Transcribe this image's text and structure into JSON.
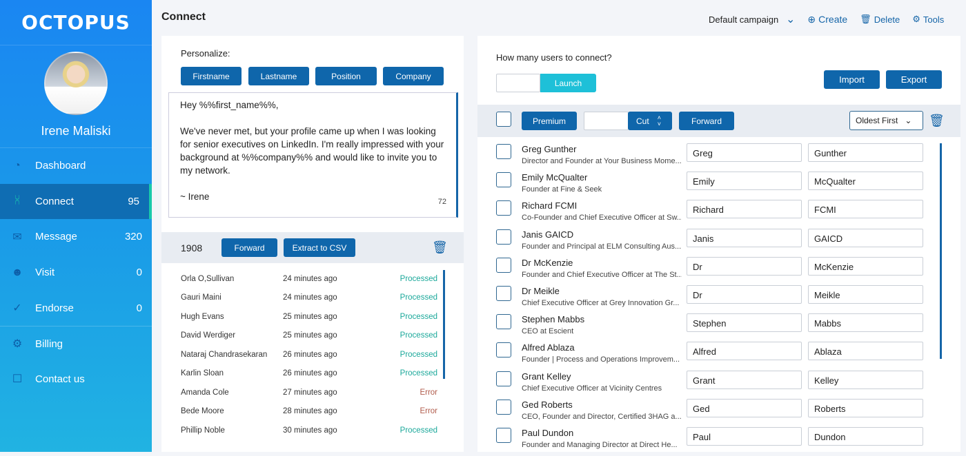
{
  "sidebar": {
    "logo": "OCTOPUS",
    "user": "Irene Maliski",
    "items": [
      {
        "label": "Dashboard",
        "count": "",
        "icon": "pie-chart-icon"
      },
      {
        "label": "Connect",
        "count": "95",
        "icon": "share-icon"
      },
      {
        "label": "Message",
        "count": "320",
        "icon": "mail-icon"
      },
      {
        "label": "Visit",
        "count": "0",
        "icon": "users-icon"
      },
      {
        "label": "Endorse",
        "count": "0",
        "icon": "user-check-icon"
      },
      {
        "label": "Billing",
        "count": "",
        "icon": "gear-icon"
      },
      {
        "label": "Contact us",
        "count": "",
        "icon": "chat-icon"
      }
    ]
  },
  "header": {
    "title": "Connect",
    "campaign": "Default campaign",
    "create": "Create",
    "delete": "Delete",
    "tools": "Tools"
  },
  "personalize": {
    "label": "Personalize:",
    "tokens": [
      "Firstname",
      "Lastname",
      "Position",
      "Company"
    ],
    "message": [
      "Hey %%first_name%%,",
      "We've never met, but your profile came up when I was looking for senior executives on LinkedIn. I'm really impressed with your background at %%company%% and would like to invite you to my network.",
      "~ Irene"
    ],
    "char_count": "72"
  },
  "history": {
    "count": "1908",
    "forward": "Forward",
    "extract": "Extract to CSV",
    "rows": [
      {
        "name": "Orla O,Sullivan",
        "time": "24 minutes ago",
        "status": "Processed"
      },
      {
        "name": "Gauri Maini",
        "time": "24 minutes ago",
        "status": "Processed"
      },
      {
        "name": "Hugh Evans",
        "time": "25 minutes ago",
        "status": "Processed"
      },
      {
        "name": "David Werdiger",
        "time": "25 minutes ago",
        "status": "Processed"
      },
      {
        "name": "Nataraj Chandrasekaran",
        "time": "26 minutes ago",
        "status": "Processed"
      },
      {
        "name": "Karlin Sloan",
        "time": "26 minutes ago",
        "status": "Processed"
      },
      {
        "name": "Amanda Cole",
        "time": "27 minutes ago",
        "status": "Error"
      },
      {
        "name": "Bede Moore",
        "time": "28 minutes ago",
        "status": "Error"
      },
      {
        "name": "Phillip Noble",
        "time": "30 minutes ago",
        "status": "Processed"
      }
    ]
  },
  "connect": {
    "question": "How many users to connect?",
    "count_value": "",
    "launch": "Launch",
    "import": "Import",
    "export": "Export",
    "premium": "Premium",
    "cut_value": "",
    "cut": "Cut",
    "forward": "Forward",
    "sort": "Oldest First",
    "users": [
      {
        "name": "Greg Gunther",
        "title": "Director and Founder at Your Business Mome...",
        "first": "Greg",
        "last": "Gunther"
      },
      {
        "name": "Emily McQualter",
        "title": "Founder at Fine & Seek",
        "first": "Emily",
        "last": "McQualter"
      },
      {
        "name": "Richard FCMI",
        "title": "Co-Founder and Chief Executive Officer at Sw...",
        "first": "Richard",
        "last": "FCMI"
      },
      {
        "name": "Janis GAICD",
        "title": "Founder and Principal at ELM Consulting Aus...",
        "first": "Janis",
        "last": "GAICD"
      },
      {
        "name": "Dr McKenzie",
        "title": "Founder and Chief Executive Officer at The St...",
        "first": "Dr",
        "last": "McKenzie"
      },
      {
        "name": "Dr Meikle",
        "title": "Chief Executive Officer at Grey Innovation Gr...",
        "first": "Dr",
        "last": "Meikle"
      },
      {
        "name": "Stephen Mabbs",
        "title": "CEO at Escient",
        "first": "Stephen",
        "last": "Mabbs"
      },
      {
        "name": "Alfred Ablaza",
        "title": "Founder | Process and Operations Improvem...",
        "first": "Alfred",
        "last": "Ablaza"
      },
      {
        "name": "Grant Kelley",
        "title": "Chief Executive Officer at Vicinity Centres",
        "first": "Grant",
        "last": "Kelley"
      },
      {
        "name": "Ged Roberts",
        "title": "CEO, Founder and Director, Certified 3HAG a...",
        "first": "Ged",
        "last": "Roberts"
      },
      {
        "name": "Paul Dundon",
        "title": "Founder and Managing Director at Direct He...",
        "first": "Paul",
        "last": "Dundon"
      }
    ]
  },
  "colors": {
    "primary": "#0f66ab",
    "launch": "#1ec0d8",
    "processed": "#1aa89a",
    "error": "#b05a4a"
  }
}
